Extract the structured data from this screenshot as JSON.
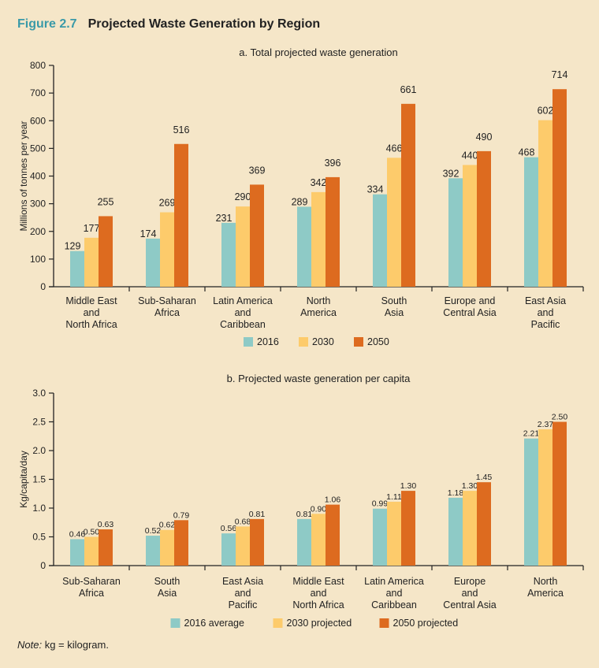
{
  "figure": {
    "number": "Figure 2.7",
    "title": "Projected Waste Generation by Region"
  },
  "colors": {
    "s1": "#8ecac6",
    "s2": "#fdcb6b",
    "s3": "#dd6b1f",
    "fig_number": "#3a9aa8",
    "background": "#f5e6c8"
  },
  "chart_data": [
    {
      "type": "bar",
      "title": "a. Total projected waste generation",
      "xlabel": "",
      "ylabel": "Millions of tonnes per year",
      "ylim": [
        0,
        800
      ],
      "yticks": [
        "0",
        "100",
        "200",
        "300",
        "400",
        "500",
        "600",
        "700",
        "800"
      ],
      "categories": [
        [
          "Middle East",
          "and",
          "North Africa"
        ],
        [
          "Sub-Saharan",
          "Africa"
        ],
        [
          "Latin America",
          "and",
          "Caribbean"
        ],
        [
          "North",
          "America"
        ],
        [
          "South",
          "Asia"
        ],
        [
          "Europe and",
          "Central Asia"
        ],
        [
          "East Asia",
          "and",
          "Pacific"
        ]
      ],
      "series": [
        {
          "name": "2016",
          "values": [
            129,
            174,
            231,
            289,
            334,
            392,
            468
          ],
          "labels": [
            "129",
            "174",
            "231",
            "289",
            "334",
            "392",
            "468"
          ]
        },
        {
          "name": "2030",
          "values": [
            177,
            269,
            290,
            342,
            466,
            440,
            602
          ],
          "labels": [
            "177",
            "269",
            "290",
            "342",
            "466",
            "440",
            "602"
          ]
        },
        {
          "name": "2050",
          "values": [
            255,
            516,
            369,
            396,
            661,
            490,
            714
          ],
          "labels": [
            "255",
            "516",
            "369",
            "396",
            "661",
            "490",
            "714"
          ]
        }
      ],
      "legend": "bottom",
      "grid": false
    },
    {
      "type": "bar",
      "title": "b. Projected waste generation per capita",
      "xlabel": "",
      "ylabel": "Kg/capita/day",
      "ylim": [
        0,
        3.0
      ],
      "yticks": [
        "0",
        "0.5",
        "1.0",
        "1.5",
        "2.0",
        "2.5",
        "3.0"
      ],
      "categories": [
        [
          "Sub-Saharan",
          "Africa"
        ],
        [
          "South",
          "Asia"
        ],
        [
          "East Asia",
          "and",
          "Pacific"
        ],
        [
          "Middle East",
          "and",
          "North Africa"
        ],
        [
          "Latin America",
          "and",
          "Caribbean"
        ],
        [
          "Europe",
          "and",
          "Central Asia"
        ],
        [
          "North",
          "America"
        ]
      ],
      "series": [
        {
          "name": "2016 average",
          "values": [
            0.46,
            0.52,
            0.56,
            0.81,
            0.99,
            1.18,
            2.21
          ],
          "labels": [
            "0.46",
            "0.52",
            "0.56",
            "0.81",
            "0.99",
            "1.18",
            "2.21"
          ]
        },
        {
          "name": "2030 projected",
          "values": [
            0.5,
            0.62,
            0.68,
            0.9,
            1.11,
            1.3,
            2.37
          ],
          "labels": [
            "0.50",
            "0.62",
            "0.68",
            "0.90",
            "1.11",
            "1.30",
            "2.37"
          ]
        },
        {
          "name": "2050 projected",
          "values": [
            0.63,
            0.79,
            0.81,
            1.06,
            1.3,
            1.45,
            2.5
          ],
          "labels": [
            "0.63",
            "0.79",
            "0.81",
            "1.06",
            "1.30",
            "1.45",
            "2.50"
          ]
        }
      ],
      "legend": "bottom",
      "grid": false
    }
  ],
  "note": {
    "label": "Note:",
    "text": " kg = kilogram."
  }
}
